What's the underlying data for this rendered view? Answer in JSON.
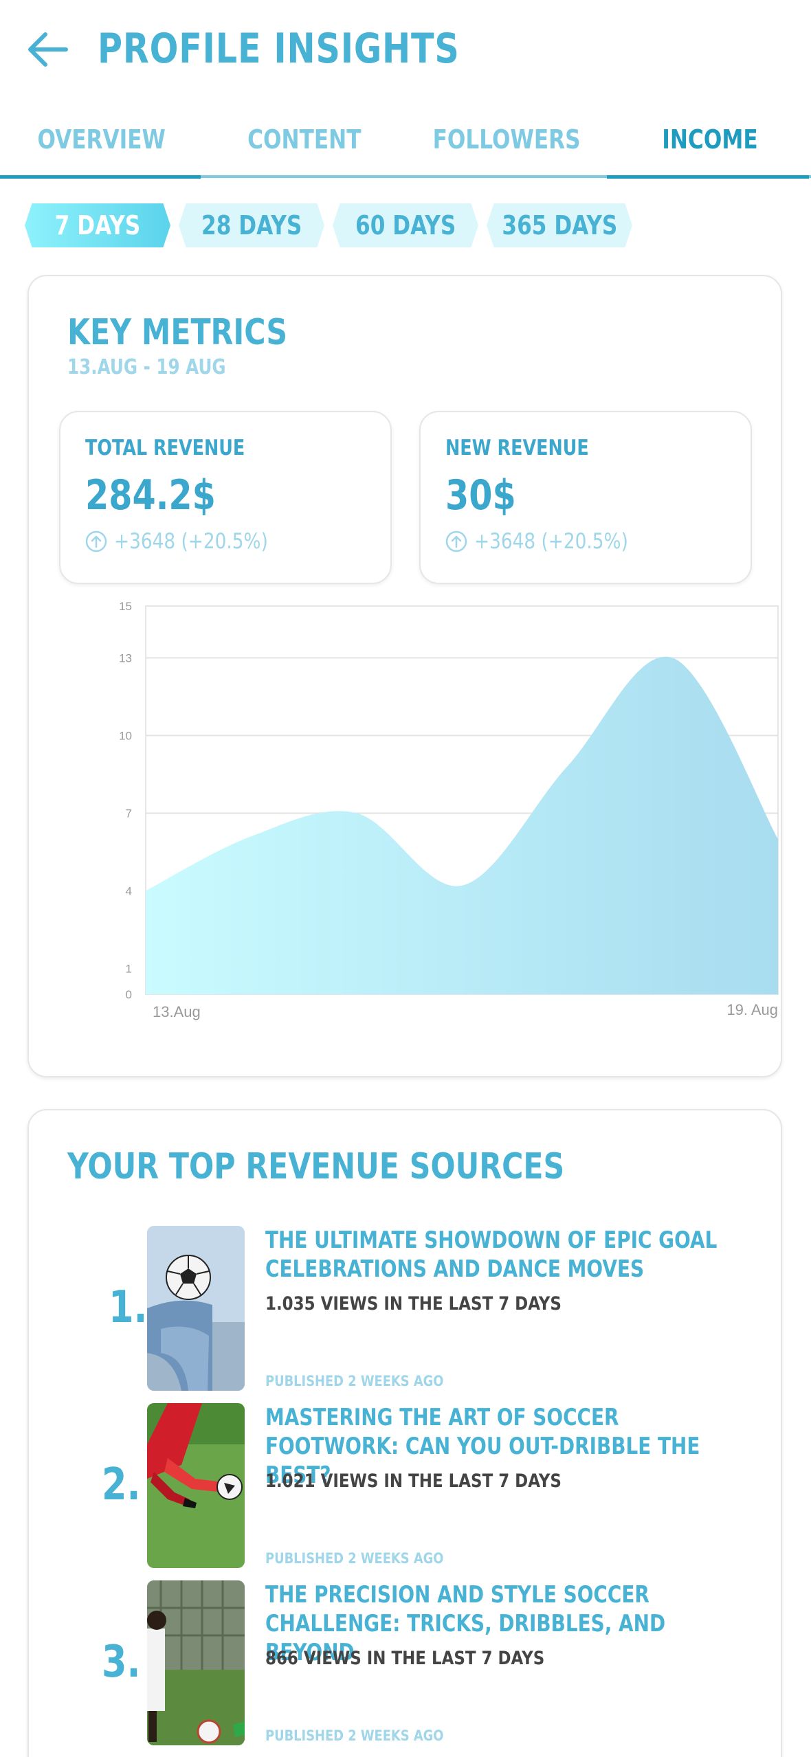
{
  "header": {
    "title": "PROFILE INSIGHTS",
    "back_icon": "arrow-left-icon"
  },
  "tabs": [
    {
      "label": "OVERVIEW",
      "active": false
    },
    {
      "label": "CONTENT",
      "active": false
    },
    {
      "label": "FOLLOWERS",
      "active": false
    },
    {
      "label": "INCOME",
      "active": true
    }
  ],
  "periods": [
    {
      "label": "7 DAYS",
      "active": true
    },
    {
      "label": "28 DAYS",
      "active": false
    },
    {
      "label": "60 DAYS",
      "active": false
    },
    {
      "label": "365 DAYS",
      "active": false
    }
  ],
  "key_metrics": {
    "title": "KEY METRICS",
    "date_range": "13.AUG - 19 AUG",
    "total_revenue": {
      "label": "TOTAL REVENUE",
      "value": "284.2$",
      "change": "+3648 (+20.5%)",
      "icon": "arrow-up-circle-icon"
    },
    "new_revenue": {
      "label": "NEW REVENUE",
      "value": "30$",
      "change": "+3648 (+20.5%)",
      "icon": "arrow-up-circle-icon"
    }
  },
  "chart_data": {
    "type": "area",
    "x": [
      "13.Aug",
      "",
      "",
      "",
      "",
      "",
      "19. Aug"
    ],
    "x_tick_labels": [
      "13.Aug",
      "19. Aug"
    ],
    "values": [
      4,
      6.1,
      7,
      4.2,
      8.8,
      13,
      6
    ],
    "y_ticks": [
      0,
      1,
      4,
      7,
      10,
      13,
      15
    ],
    "ylim": [
      0,
      15
    ],
    "grid": true,
    "colors": {
      "fill_start": "#c9fbff",
      "fill_end": "#a8dcef"
    }
  },
  "sources": {
    "title": "YOUR TOP REVENUE SOURCES",
    "items": [
      {
        "rank": "1.",
        "title": "THE ULTIMATE SHOWDOWN OF EPIC GOAL CELEBRATIONS AND DANCE MOVES",
        "views": "1.035 VIEWS IN THE LAST 7 DAYS",
        "published": "PUBLISHED 2 WEEKS AGO"
      },
      {
        "rank": "2.",
        "title": "MASTERING THE ART OF SOCCER FOOTWORK: CAN YOU OUT-DRIBBLE THE BEST?",
        "views": "1.021 VIEWS IN THE LAST 7 DAYS",
        "published": "PUBLISHED 2 WEEKS AGO"
      },
      {
        "rank": "3.",
        "title": "THE PRECISION AND STYLE SOCCER CHALLENGE: TRICKS, DRIBBLES, AND BEYOND",
        "views": "866 VIEWS IN THE LAST 7 DAYS",
        "published": "PUBLISHED 2 WEEKS AGO"
      }
    ]
  },
  "colors": {
    "accent": "#47b2d4",
    "active_tab": "#1d9cc0",
    "muted": "#9fd6ea"
  }
}
